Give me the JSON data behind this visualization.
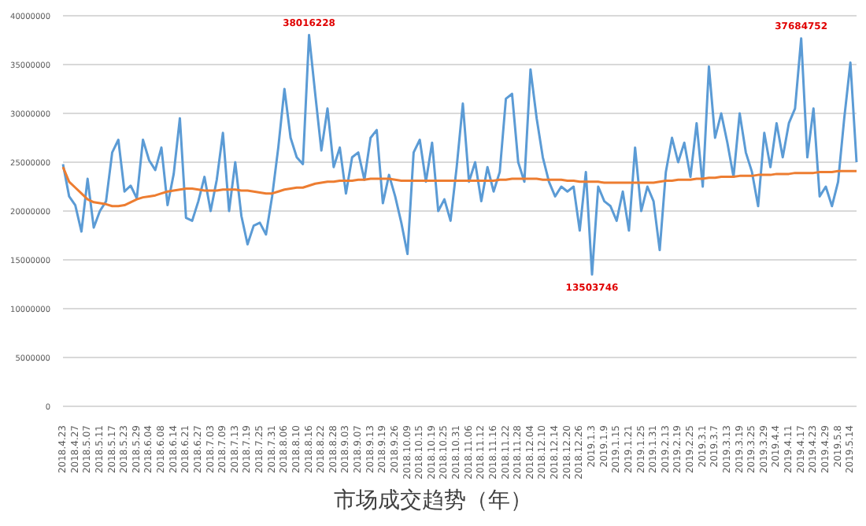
{
  "chart_data": {
    "type": "line",
    "title": "市场成交趋势（年）",
    "categories": [
      "2018.4.23",
      null,
      "2018.4.27",
      null,
      "2018.5.07",
      null,
      "2018.5.11",
      null,
      "2018.5.17",
      null,
      "2018.5.23",
      null,
      "2018.5.29",
      null,
      "2018.6.04",
      null,
      "2018.6.08",
      null,
      "2018.6.14",
      null,
      "2018.6.21",
      null,
      "2018.6.27",
      null,
      "2018.7.03",
      null,
      "2018.7.09",
      null,
      "2018.7.13",
      null,
      "2018.7.19",
      null,
      "2018.7.25",
      null,
      "2018.7.31",
      null,
      "2018.8.06",
      null,
      "2018.8.10",
      null,
      "2018.8.16",
      null,
      "2018.8.22",
      null,
      "2018.8.28",
      null,
      "2018.9.03",
      null,
      "2018.9.07",
      null,
      "2018.9.13",
      null,
      "2018.9.19",
      null,
      "2018.9.26",
      null,
      "2018.10.09",
      null,
      "2018.10.15",
      null,
      "2018.10.19",
      null,
      "2018.10.25",
      null,
      "2018.10.31",
      null,
      "2018.11.06",
      null,
      "2018.11.12",
      null,
      "2018.11.16",
      null,
      "2018.11.22",
      null,
      "2018.11.28",
      null,
      "2018.12.04",
      null,
      "2018.12.10",
      null,
      "2018.12.14",
      null,
      "2018.12.20",
      null,
      "2018.12.26",
      null,
      "2019.1.3",
      null,
      "2019.1.9",
      null,
      "2019.1.15",
      null,
      "2019.1.21",
      null,
      "2019.1.25",
      null,
      "2019.1.31",
      null,
      "2019.2.13",
      null,
      "2019.2.19",
      null,
      "2019.2.25",
      null,
      "2019.3.1",
      null,
      "2019.3.7",
      null,
      "2019.3.13",
      null,
      "2019.3.19",
      null,
      "2019.3.25",
      null,
      "2019.3.29",
      null,
      "2019.4.4",
      null,
      "2019.4.11",
      null,
      "2019.4.17",
      null,
      "2019.4.23",
      null,
      "2019.4.29",
      null,
      "2019.5.8",
      null,
      "2019.5.14",
      null
    ],
    "series": [
      {
        "color": "#5b9bd5",
        "values": [
          24800000,
          21500000,
          20600000,
          17900000,
          23300000,
          18300000,
          20000000,
          21000000,
          26000000,
          27300000,
          22000000,
          22600000,
          21300000,
          27300000,
          25200000,
          24200000,
          26500000,
          20600000,
          23800000,
          29500000,
          19300000,
          19000000,
          21000000,
          23500000,
          20000000,
          23200000,
          28000000,
          20000000,
          25000000,
          19500000,
          16600000,
          18500000,
          18800000,
          17600000,
          21500000,
          26500000,
          32500000,
          27500000,
          25500000,
          24800000,
          38016228,
          32000000,
          26200000,
          30500000,
          24500000,
          26500000,
          21800000,
          25500000,
          26000000,
          23200000,
          27500000,
          28300000,
          20800000,
          23700000,
          21500000,
          18800000,
          15600000,
          26000000,
          27300000,
          23000000,
          27000000,
          20000000,
          21200000,
          19000000,
          24500000,
          31000000,
          23000000,
          25000000,
          21000000,
          24500000,
          22000000,
          24000000,
          31500000,
          32000000,
          25000000,
          23000000,
          34500000,
          29500000,
          25500000,
          23000000,
          21500000,
          22500000,
          22000000,
          22500000,
          18000000,
          24000000,
          13503746,
          22500000,
          21000000,
          20500000,
          19000000,
          22000000,
          18000000,
          26500000,
          20000000,
          22500000,
          21000000,
          16000000,
          24000000,
          27500000,
          25000000,
          27000000,
          23500000,
          29000000,
          22500000,
          34800000,
          27500000,
          30000000,
          27000000,
          23500000,
          30000000,
          26000000,
          24000000,
          20500000,
          28000000,
          24500000,
          29000000,
          25500000,
          29000000,
          30500000,
          37684752,
          25500000,
          30500000,
          21500000,
          22500000,
          20500000,
          23000000,
          29500000,
          35200000,
          25000000
        ],
        "value_labels": [
          null,
          null,
          null,
          null,
          null,
          null,
          null,
          null,
          null,
          null,
          null,
          null,
          null,
          null,
          null,
          null,
          null,
          null,
          null,
          null,
          null,
          null,
          null,
          null,
          null,
          null,
          null,
          null,
          null,
          null,
          null,
          null,
          null,
          null,
          null,
          null,
          null,
          null,
          null,
          null,
          "38016228",
          null,
          null,
          null,
          null,
          null,
          null,
          null,
          null,
          null,
          null,
          null,
          null,
          null,
          null,
          null,
          null,
          null,
          null,
          null,
          null,
          null,
          null,
          null,
          null,
          null,
          null,
          null,
          null,
          null,
          null,
          null,
          null,
          null,
          null,
          null,
          null,
          null,
          null,
          null,
          null,
          null,
          null,
          null,
          null,
          null,
          "13503746",
          null,
          null,
          null,
          null,
          null,
          null,
          null,
          null,
          null,
          null,
          null,
          null,
          null,
          null,
          null,
          null,
          null,
          null,
          null,
          null,
          null,
          null,
          null,
          null,
          null,
          null,
          null,
          null,
          null,
          null,
          null,
          null,
          null,
          "37684752",
          null,
          null,
          null,
          null,
          null,
          null,
          null,
          null,
          null
        ]
      },
      {
        "color": "#ed7d31",
        "values": [
          24500000,
          23000000,
          22400000,
          21800000,
          21200000,
          20900000,
          20800000,
          20700000,
          20500000,
          20500000,
          20600000,
          20900000,
          21200000,
          21400000,
          21500000,
          21600000,
          21800000,
          22000000,
          22100000,
          22200000,
          22300000,
          22300000,
          22200000,
          22100000,
          22100000,
          22100000,
          22200000,
          22200000,
          22200000,
          22100000,
          22100000,
          22000000,
          21900000,
          21800000,
          21800000,
          22000000,
          22200000,
          22300000,
          22400000,
          22400000,
          22600000,
          22800000,
          22900000,
          23000000,
          23000000,
          23100000,
          23100000,
          23100000,
          23200000,
          23200000,
          23300000,
          23300000,
          23300000,
          23300000,
          23200000,
          23100000,
          23100000,
          23100000,
          23100000,
          23100000,
          23100000,
          23100000,
          23100000,
          23100000,
          23100000,
          23100000,
          23100000,
          23100000,
          23100000,
          23100000,
          23100000,
          23200000,
          23200000,
          23300000,
          23300000,
          23300000,
          23300000,
          23300000,
          23200000,
          23200000,
          23200000,
          23200000,
          23100000,
          23100000,
          23000000,
          23000000,
          23000000,
          23000000,
          22900000,
          22900000,
          22900000,
          22900000,
          22900000,
          22900000,
          22900000,
          22900000,
          22900000,
          23000000,
          23100000,
          23100000,
          23200000,
          23200000,
          23200000,
          23300000,
          23300000,
          23400000,
          23400000,
          23500000,
          23500000,
          23500000,
          23600000,
          23600000,
          23600000,
          23700000,
          23700000,
          23700000,
          23800000,
          23800000,
          23800000,
          23900000,
          23900000,
          23900000,
          23900000,
          24000000,
          24000000,
          24000000,
          24100000,
          24100000,
          24100000,
          24100000
        ]
      }
    ],
    "ylim": [
      0,
      40000000
    ],
    "yticks": [
      0,
      5000000,
      10000000,
      15000000,
      20000000,
      25000000,
      30000000,
      35000000,
      40000000
    ],
    "grid": "y"
  }
}
